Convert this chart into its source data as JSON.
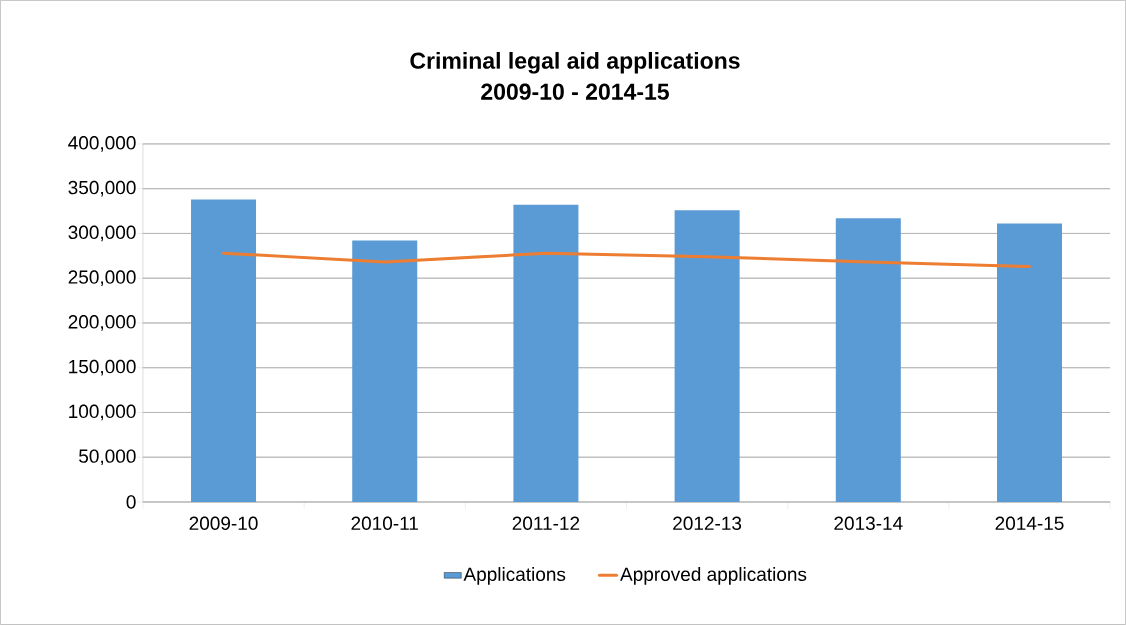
{
  "chart_data": {
    "type": "bar",
    "title": "Criminal legal aid applications\n2009-10 - 2014-15",
    "categories": [
      "2009-10",
      "2010-11",
      "2011-12",
      "2012-13",
      "2013-14",
      "2014-15"
    ],
    "series": [
      {
        "name": "Applications",
        "color": "#5b9bd5",
        "values": [
          338000,
          292000,
          332000,
          326000,
          317000,
          311000
        ]
      },
      {
        "name": "Approved applications",
        "type": "line",
        "color": "#ed7d31",
        "values": [
          278000,
          268000,
          278000,
          274000,
          268000,
          263000
        ]
      }
    ],
    "ylim": [
      0,
      400000
    ],
    "yticks": [
      0,
      {
        "value": 50000,
        "label": "50,000"
      },
      {
        "value": 100000,
        "label": "100,000"
      },
      {
        "value": 150000,
        "label": "150,000"
      },
      {
        "value": 200000,
        "label": "200,000"
      },
      {
        "value": 250000,
        "label": "250,000"
      },
      {
        "value": 300000,
        "label": "300,000"
      },
      {
        "value": 350000,
        "label": "350,000"
      },
      {
        "value": 400000,
        "label": "400,000"
      }
    ],
    "grid": "y",
    "legend": "bottom",
    "marker": "none",
    "line_style": "solid"
  }
}
